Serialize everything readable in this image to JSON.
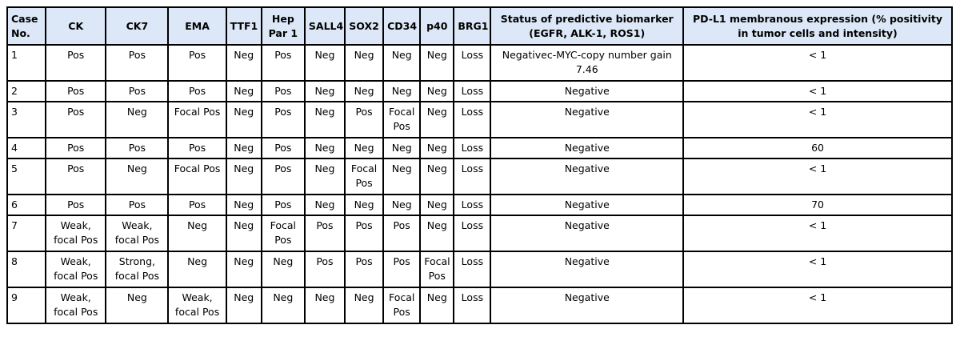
{
  "headers": [
    "Case No.",
    "CK",
    "CK7",
    "EMA",
    "TTF1",
    "Hep Par 1",
    "SALL4",
    "SOX2",
    "CD34",
    "p40",
    "BRG1",
    "Status of predictive biomarker (EGFR, ALK-1, ROS1)",
    "PD-L1 membranous expression (% positivity in tumor cells and intensity)"
  ],
  "rows": [
    [
      "1",
      "Pos",
      "Pos",
      "Pos",
      "Neg",
      "Pos",
      "Neg",
      "Neg",
      "Neg",
      "Neg",
      "Loss",
      "Negativec-MYC-copy number gain 7.46",
      "< 1"
    ],
    [
      "2",
      "Pos",
      "Pos",
      "Pos",
      "Neg",
      "Pos",
      "Neg",
      "Neg",
      "Neg",
      "Neg",
      "Loss",
      "Negative",
      "< 1"
    ],
    [
      "3",
      "Pos",
      "Neg",
      "Focal Pos",
      "Neg",
      "Pos",
      "Neg",
      "Pos",
      "Focal Pos",
      "Neg",
      "Loss",
      "Negative",
      "< 1"
    ],
    [
      "4",
      "Pos",
      "Pos",
      "Pos",
      "Neg",
      "Pos",
      "Neg",
      "Neg",
      "Neg",
      "Neg",
      "Loss",
      "Negative",
      "60"
    ],
    [
      "5",
      "Pos",
      "Neg",
      "Focal Pos",
      "Neg",
      "Pos",
      "Neg",
      "Focal Pos",
      "Neg",
      "Neg",
      "Loss",
      "Negative",
      "< 1"
    ],
    [
      "6",
      "Pos",
      "Pos",
      "Pos",
      "Neg",
      "Pos",
      "Neg",
      "Neg",
      "Neg",
      "Neg",
      "Loss",
      "Negative",
      "70"
    ],
    [
      "7",
      "Weak, focal Pos",
      "Weak, focal Pos",
      "Neg",
      "Neg",
      "Focal Pos",
      "Pos",
      "Pos",
      "Pos",
      "Neg",
      "Loss",
      "Negative",
      "< 1"
    ],
    [
      "8",
      "Weak, focal Pos",
      "Strong, focal Pos",
      "Neg",
      "Neg",
      "Neg",
      "Pos",
      "Pos",
      "Pos",
      "Focal Pos",
      "Loss",
      "Negative",
      "< 1"
    ],
    [
      "9",
      "Weak, focal Pos",
      "Neg",
      "Weak, focal Pos",
      "Neg",
      "Neg",
      "Neg",
      "Neg",
      "Focal Pos",
      "Neg",
      "Loss",
      "Negative",
      "< 1"
    ]
  ],
  "colors": {
    "header_bg": "#dce8f7",
    "border": "#000000"
  }
}
